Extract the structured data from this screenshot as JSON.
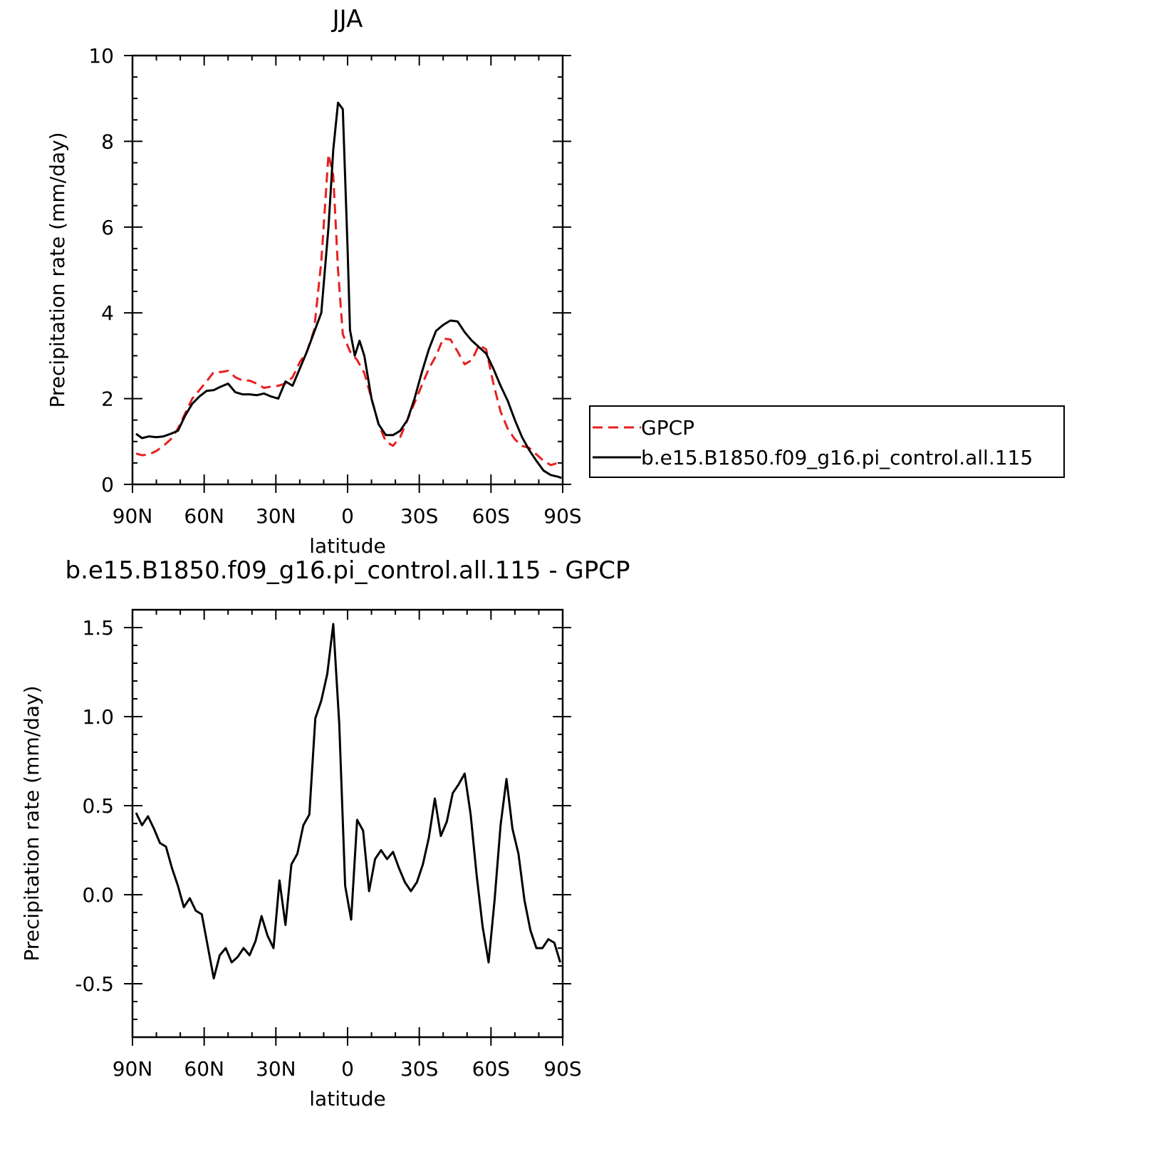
{
  "chart_data": [
    {
      "type": "line",
      "title": "JJA",
      "xlabel": "latitude",
      "ylabel": "Precipitation rate (mm/day)",
      "xlim": [
        90,
        -90
      ],
      "ylim": [
        0,
        10
      ],
      "x_ticks": [
        {
          "value": 90,
          "label": "90N"
        },
        {
          "value": 60,
          "label": "60N"
        },
        {
          "value": 30,
          "label": "30N"
        },
        {
          "value": 0,
          "label": "0"
        },
        {
          "value": -30,
          "label": "30S"
        },
        {
          "value": -60,
          "label": "60S"
        },
        {
          "value": -90,
          "label": "90S"
        }
      ],
      "y_ticks": [
        {
          "value": 0,
          "label": "0"
        },
        {
          "value": 2,
          "label": "2"
        },
        {
          "value": 4,
          "label": "4"
        },
        {
          "value": 6,
          "label": "6"
        },
        {
          "value": 8,
          "label": "8"
        },
        {
          "value": 10,
          "label": "10"
        }
      ],
      "legend_position": "right",
      "series": [
        {
          "name": "GPCP",
          "color": "#e8201f",
          "style": "dashed",
          "points": [
            [
              88.5,
              0.72
            ],
            [
              86,
              0.68
            ],
            [
              83,
              0.7
            ],
            [
              80,
              0.78
            ],
            [
              77,
              0.9
            ],
            [
              74,
              1.05
            ],
            [
              71,
              1.3
            ],
            [
              68,
              1.65
            ],
            [
              65,
              2.0
            ],
            [
              62,
              2.2
            ],
            [
              59,
              2.4
            ],
            [
              56,
              2.62
            ],
            [
              53,
              2.62
            ],
            [
              50,
              2.65
            ],
            [
              47,
              2.5
            ],
            [
              44,
              2.42
            ],
            [
              41,
              2.42
            ],
            [
              38,
              2.35
            ],
            [
              35,
              2.25
            ],
            [
              32,
              2.28
            ],
            [
              29,
              2.3
            ],
            [
              26,
              2.35
            ],
            [
              23,
              2.5
            ],
            [
              20,
              2.85
            ],
            [
              17,
              3.1
            ],
            [
              14,
              3.6
            ],
            [
              11,
              5.2
            ],
            [
              8,
              7.7
            ],
            [
              6,
              7.2
            ],
            [
              4,
              5.0
            ],
            [
              2,
              3.5
            ],
            [
              -1,
              3.1
            ],
            [
              -4,
              2.9
            ],
            [
              -7,
              2.6
            ],
            [
              -10,
              2.0
            ],
            [
              -13,
              1.4
            ],
            [
              -16,
              1.0
            ],
            [
              -19,
              0.9
            ],
            [
              -22,
              1.1
            ],
            [
              -25,
              1.5
            ],
            [
              -28,
              1.9
            ],
            [
              -31,
              2.3
            ],
            [
              -34,
              2.7
            ],
            [
              -37,
              3.0
            ],
            [
              -40,
              3.4
            ],
            [
              -43,
              3.38
            ],
            [
              -46,
              3.1
            ],
            [
              -49,
              2.8
            ],
            [
              -52,
              2.9
            ],
            [
              -55,
              3.25
            ],
            [
              -58,
              3.15
            ],
            [
              -61,
              2.35
            ],
            [
              -64,
              1.7
            ],
            [
              -67,
              1.3
            ],
            [
              -70,
              1.05
            ],
            [
              -73,
              0.9
            ],
            [
              -76,
              0.85
            ],
            [
              -79,
              0.7
            ],
            [
              -82,
              0.55
            ],
            [
              -85,
              0.45
            ],
            [
              -88,
              0.5
            ],
            [
              -89.5,
              0.55
            ]
          ]
        },
        {
          "name": "b.e15.B1850.f09_g16.pi_control.all.115",
          "color": "#000000",
          "style": "solid",
          "points": [
            [
              88.5,
              1.18
            ],
            [
              86,
              1.08
            ],
            [
              83,
              1.12
            ],
            [
              80,
              1.1
            ],
            [
              77,
              1.12
            ],
            [
              74,
              1.18
            ],
            [
              71,
              1.25
            ],
            [
              68,
              1.6
            ],
            [
              65,
              1.88
            ],
            [
              62,
              2.05
            ],
            [
              59,
              2.18
            ],
            [
              56,
              2.2
            ],
            [
              53,
              2.28
            ],
            [
              50,
              2.35
            ],
            [
              47,
              2.15
            ],
            [
              44,
              2.1
            ],
            [
              41,
              2.1
            ],
            [
              38,
              2.08
            ],
            [
              35,
              2.12
            ],
            [
              32,
              2.05
            ],
            [
              29,
              2.0
            ],
            [
              26,
              2.4
            ],
            [
              23,
              2.3
            ],
            [
              20,
              2.7
            ],
            [
              17,
              3.1
            ],
            [
              14,
              3.55
            ],
            [
              11,
              4.0
            ],
            [
              8,
              6.0
            ],
            [
              6,
              7.8
            ],
            [
              4,
              8.9
            ],
            [
              2,
              8.75
            ],
            [
              0,
              5.5
            ],
            [
              -1,
              3.6
            ],
            [
              -3,
              3.0
            ],
            [
              -5,
              3.35
            ],
            [
              -7,
              3.0
            ],
            [
              -10,
              2.0
            ],
            [
              -13,
              1.4
            ],
            [
              -16,
              1.15
            ],
            [
              -19,
              1.15
            ],
            [
              -22,
              1.25
            ],
            [
              -25,
              1.5
            ],
            [
              -28,
              2.0
            ],
            [
              -31,
              2.6
            ],
            [
              -34,
              3.15
            ],
            [
              -37,
              3.58
            ],
            [
              -40,
              3.72
            ],
            [
              -43,
              3.82
            ],
            [
              -46,
              3.8
            ],
            [
              -49,
              3.55
            ],
            [
              -52,
              3.35
            ],
            [
              -55,
              3.2
            ],
            [
              -58,
              3.05
            ],
            [
              -61,
              2.7
            ],
            [
              -64,
              2.3
            ],
            [
              -67,
              1.95
            ],
            [
              -70,
              1.5
            ],
            [
              -73,
              1.1
            ],
            [
              -76,
              0.8
            ],
            [
              -79,
              0.55
            ],
            [
              -82,
              0.32
            ],
            [
              -85,
              0.22
            ],
            [
              -88,
              0.18
            ],
            [
              -89.5,
              0.15
            ]
          ]
        }
      ]
    },
    {
      "type": "line",
      "title": "b.e15.B1850.f09_g16.pi_control.all.115 - GPCP",
      "xlabel": "latitude",
      "ylabel": "Precipitation rate (mm/day)",
      "xlim": [
        90,
        -90
      ],
      "ylim": [
        -0.8,
        1.6
      ],
      "x_ticks": [
        {
          "value": 90,
          "label": "90N"
        },
        {
          "value": 60,
          "label": "60N"
        },
        {
          "value": 30,
          "label": "30N"
        },
        {
          "value": 0,
          "label": "0"
        },
        {
          "value": -30,
          "label": "30S"
        },
        {
          "value": -60,
          "label": "60S"
        },
        {
          "value": -90,
          "label": "90S"
        }
      ],
      "y_ticks": [
        {
          "value": -0.5,
          "label": "-0.5"
        },
        {
          "value": 0.0,
          "label": "0.0"
        },
        {
          "value": 0.5,
          "label": "0.5"
        },
        {
          "value": 1.0,
          "label": "1.0"
        },
        {
          "value": 1.5,
          "label": "1.5"
        }
      ],
      "series": [
        {
          "color": "#000000",
          "style": "solid",
          "points": [
            [
              88.5,
              0.46
            ],
            [
              86,
              0.39
            ],
            [
              83.5,
              0.44
            ],
            [
              81,
              0.37
            ],
            [
              78.5,
              0.29
            ],
            [
              76,
              0.27
            ],
            [
              73.5,
              0.15
            ],
            [
              71,
              0.05
            ],
            [
              68.5,
              -0.07
            ],
            [
              66,
              -0.02
            ],
            [
              63.5,
              -0.09
            ],
            [
              61,
              -0.11
            ],
            [
              58.5,
              -0.29
            ],
            [
              56,
              -0.47
            ],
            [
              53.5,
              -0.34
            ],
            [
              51,
              -0.3
            ],
            [
              48.5,
              -0.38
            ],
            [
              46,
              -0.35
            ],
            [
              43.5,
              -0.3
            ],
            [
              41,
              -0.34
            ],
            [
              38.5,
              -0.26
            ],
            [
              36,
              -0.12
            ],
            [
              33.5,
              -0.23
            ],
            [
              31,
              -0.3
            ],
            [
              28.5,
              0.08
            ],
            [
              26,
              -0.17
            ],
            [
              23.5,
              0.17
            ],
            [
              21,
              0.23
            ],
            [
              18.5,
              0.39
            ],
            [
              16,
              0.45
            ],
            [
              13.5,
              0.99
            ],
            [
              11,
              1.09
            ],
            [
              8.5,
              1.24
            ],
            [
              6,
              1.52
            ],
            [
              3.5,
              0.96
            ],
            [
              1,
              0.05
            ],
            [
              -1.5,
              -0.14
            ],
            [
              -4,
              0.42
            ],
            [
              -6.5,
              0.36
            ],
            [
              -9,
              0.02
            ],
            [
              -11.5,
              0.2
            ],
            [
              -14,
              0.25
            ],
            [
              -16.5,
              0.2
            ],
            [
              -19,
              0.24
            ],
            [
              -21.5,
              0.15
            ],
            [
              -24,
              0.07
            ],
            [
              -26.5,
              0.02
            ],
            [
              -29,
              0.07
            ],
            [
              -31.5,
              0.17
            ],
            [
              -34,
              0.32
            ],
            [
              -36.5,
              0.54
            ],
            [
              -39,
              0.33
            ],
            [
              -41.5,
              0.41
            ],
            [
              -44,
              0.57
            ],
            [
              -46.5,
              0.62
            ],
            [
              -49,
              0.68
            ],
            [
              -51.5,
              0.45
            ],
            [
              -54,
              0.11
            ],
            [
              -56.5,
              -0.18
            ],
            [
              -59,
              -0.38
            ],
            [
              -61.5,
              -0.03
            ],
            [
              -64,
              0.39
            ],
            [
              -66.5,
              0.65
            ],
            [
              -69,
              0.37
            ],
            [
              -71.5,
              0.23
            ],
            [
              -74,
              -0.03
            ],
            [
              -76.5,
              -0.2
            ],
            [
              -79,
              -0.3
            ],
            [
              -81.5,
              -0.3
            ],
            [
              -84,
              -0.25
            ],
            [
              -86.5,
              -0.27
            ],
            [
              -89,
              -0.38
            ]
          ]
        }
      ]
    }
  ]
}
